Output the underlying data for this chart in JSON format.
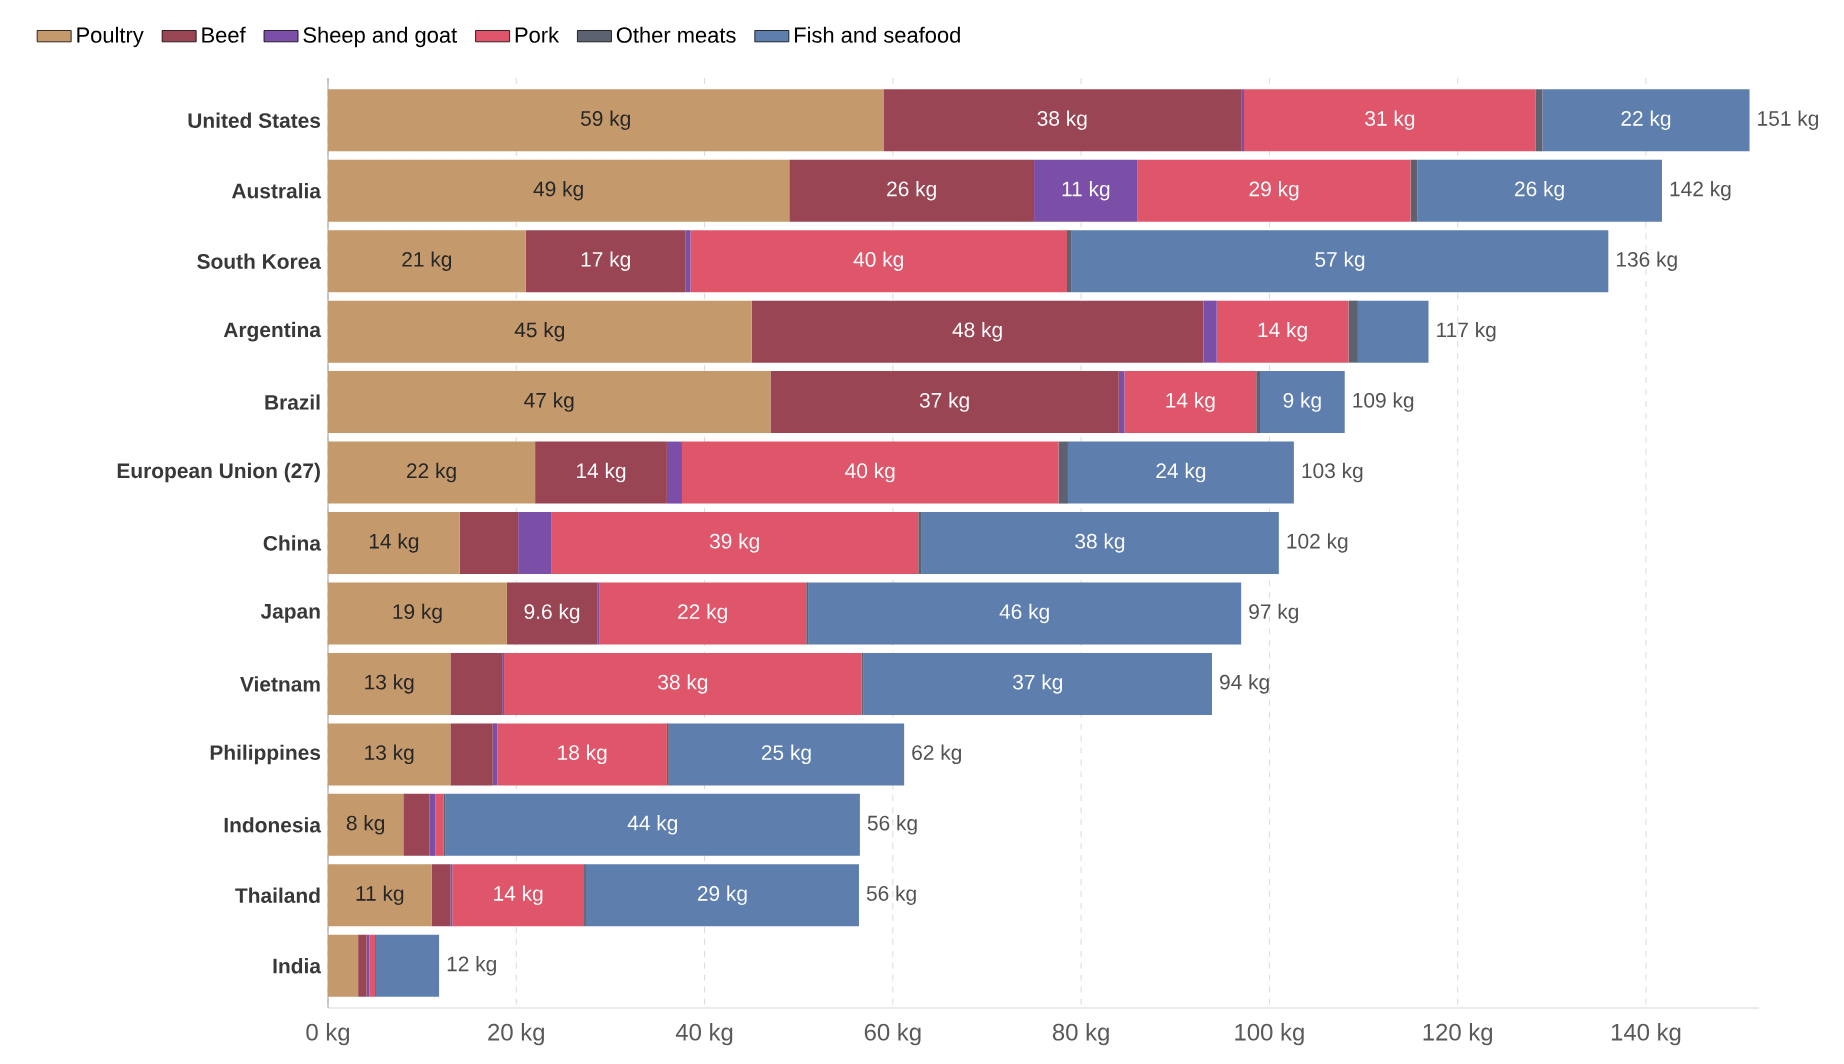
{
  "chart_data": {
    "type": "bar",
    "orientation": "horizontal",
    "stacked": true,
    "grid": "x",
    "legend": "top left",
    "categories": [
      "United States",
      "Australia",
      "South Korea",
      "Argentina",
      "Brazil",
      "European Union (27)",
      "China",
      "Japan",
      "Vietnam",
      "Philippines",
      "Indonesia",
      "Thailand",
      "India"
    ],
    "xlim": [
      0,
      152
    ],
    "xticks": [
      {
        "value": 0,
        "label": "0 kg"
      },
      {
        "value": 20,
        "label": "20 kg"
      },
      {
        "value": 40,
        "label": "40 kg"
      },
      {
        "value": 60,
        "label": "60 kg"
      },
      {
        "value": 80,
        "label": "80 kg"
      },
      {
        "value": 100,
        "label": "100 kg"
      },
      {
        "value": 120,
        "label": "120 kg"
      },
      {
        "value": 140,
        "label": "140 kg"
      }
    ],
    "series": [
      {
        "name": "Poultry",
        "color": "#c4996c",
        "values": [
          59,
          49,
          21,
          45,
          47,
          22,
          14,
          19,
          13,
          13,
          8,
          11,
          3.2
        ],
        "value_labels": [
          "59 kg",
          "49 kg",
          "21 kg",
          "45 kg",
          "47 kg",
          "22 kg",
          "14 kg",
          "19 kg",
          "13 kg",
          "13 kg",
          "8 kg",
          "11 kg",
          null
        ]
      },
      {
        "name": "Beef",
        "color": "#9a4553",
        "values": [
          38,
          26,
          17,
          48,
          37,
          14,
          6.2,
          9.6,
          5.5,
          4.5,
          2.8,
          2,
          0.9
        ],
        "value_labels": [
          "38 kg",
          "26 kg",
          "17 kg",
          "48 kg",
          "37 kg",
          "14 kg",
          null,
          "9.6 kg",
          null,
          null,
          null,
          null,
          null
        ]
      },
      {
        "name": "Sheep and goat",
        "color": "#7b4ea8",
        "values": [
          0.3,
          11,
          0.5,
          1.4,
          0.6,
          1.6,
          3.5,
          0.2,
          0.2,
          0.5,
          0.6,
          0.2,
          0.3
        ],
        "value_labels": [
          null,
          "11 kg",
          null,
          null,
          null,
          null,
          null,
          null,
          null,
          null,
          null,
          null,
          null
        ]
      },
      {
        "name": "Pork",
        "color": "#df566b",
        "values": [
          31,
          29,
          40,
          14,
          14,
          40,
          39,
          22,
          38,
          18,
          0.9,
          14,
          0.6
        ],
        "value_labels": [
          "31 kg",
          "29 kg",
          "40 kg",
          "14 kg",
          "14 kg",
          "40 kg",
          "39 kg",
          "22 kg",
          "38 kg",
          "18 kg",
          null,
          "14 kg",
          null
        ]
      },
      {
        "name": "Other meats",
        "color": "#5c6270",
        "values": [
          0.7,
          0.7,
          0.5,
          1,
          0.4,
          1,
          0.3,
          0.2,
          0.2,
          0.2,
          0.2,
          0.2,
          0.1
        ],
        "value_labels": [
          null,
          null,
          null,
          null,
          null,
          null,
          null,
          null,
          null,
          null,
          null,
          null,
          null
        ]
      },
      {
        "name": "Fish and seafood",
        "color": "#5e7eae",
        "values": [
          22,
          26,
          57,
          7.5,
          9,
          24,
          38,
          46,
          37,
          25,
          44,
          29,
          6.7
        ],
        "value_labels": [
          "22 kg",
          "26 kg",
          "57 kg",
          null,
          "9 kg",
          "24 kg",
          "38 kg",
          "46 kg",
          "37 kg",
          "25 kg",
          "44 kg",
          "29 kg",
          null
        ]
      }
    ],
    "totals": [
      "151 kg",
      "142 kg",
      "136 kg",
      "117 kg",
      "109 kg",
      "103 kg",
      "102 kg",
      "97 kg",
      "94 kg",
      "62 kg",
      "56 kg",
      "56 kg",
      "12 kg"
    ]
  }
}
